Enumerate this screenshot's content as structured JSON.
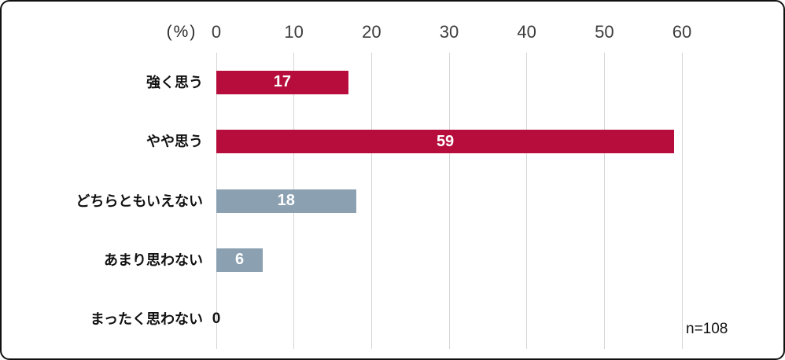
{
  "chart_data": {
    "type": "bar",
    "orientation": "horizontal",
    "title": "",
    "unit_label": "(%)",
    "sample_size_label": "n=108",
    "categories": [
      "強く思う",
      "やや思う",
      "どちらともいえない",
      "あまり思わない",
      "まったく思わない"
    ],
    "values": [
      17,
      59,
      18,
      6,
      0
    ],
    "bar_colors": [
      "#b70d3c",
      "#b70d3c",
      "#8ba1b2",
      "#8ba1b2",
      "#8ba1b2"
    ],
    "value_label_position": "inside-center",
    "xlim": [
      0,
      60
    ],
    "xticks": [
      0,
      10,
      20,
      30,
      40,
      50,
      60
    ],
    "grid": true,
    "legend": "none"
  },
  "colors": {
    "crimson_bar": "#b70d3c",
    "bluegray_bar": "#8ba1b2",
    "gridline": "#d6d6d6",
    "tick_text": "#3d3d3d",
    "category_text": "#111111",
    "value_text_inside": "#ffffff",
    "value_text_zero": "#111111",
    "frame_border": "#101010",
    "background": "#ffffff"
  }
}
